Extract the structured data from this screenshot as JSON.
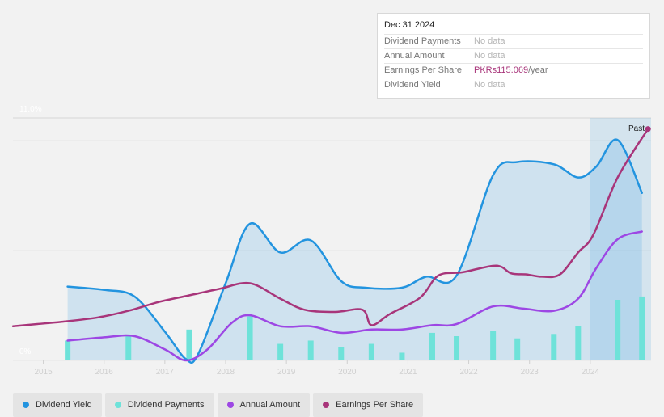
{
  "tooltip": {
    "date": "Dec 31 2024",
    "rows": [
      {
        "label": "Dividend Payments",
        "value": "No data"
      },
      {
        "label": "Annual Amount",
        "value": "No data"
      },
      {
        "label": "Earnings Per Share",
        "value": "PKRs115.069",
        "unit": "/year"
      },
      {
        "label": "Dividend Yield",
        "value": "No data"
      }
    ]
  },
  "colors": {
    "dividend_yield": "#2394df",
    "dividend_payments": "#6ee2d9",
    "annual_amount": "#9d47e4",
    "earnings_per_share": "#a8357a"
  },
  "legend": [
    {
      "label": "Dividend Yield",
      "color": "#2394df"
    },
    {
      "label": "Dividend Payments",
      "color": "#6ee2d9"
    },
    {
      "label": "Annual Amount",
      "color": "#9d47e4"
    },
    {
      "label": "Earnings Per Share",
      "color": "#a8357a"
    }
  ],
  "chart_data": {
    "type": "line",
    "past_label": "Past",
    "y_tick_labels": [
      "11.0%",
      "0%"
    ],
    "ylim": [
      0,
      11
    ],
    "xlim": [
      2014.5,
      2025.0
    ],
    "x_tick_labels": [
      "2015",
      "2016",
      "2017",
      "2018",
      "2019",
      "2020",
      "2021",
      "2022",
      "2023",
      "2024"
    ],
    "x_ticks": [
      2015,
      2016,
      2017,
      2018,
      2019,
      2020,
      2021,
      2022,
      2023,
      2024
    ],
    "forecast_start": 2024.0,
    "series": [
      {
        "name": "Dividend Yield",
        "unit": "%",
        "points": [
          [
            2015.4,
            3.35
          ],
          [
            2016.0,
            3.2
          ],
          [
            2016.5,
            2.9
          ],
          [
            2017.0,
            1.3
          ],
          [
            2017.35,
            0.05
          ],
          [
            2017.55,
            0.3
          ],
          [
            2018.0,
            3.5
          ],
          [
            2018.4,
            6.2
          ],
          [
            2018.9,
            4.9
          ],
          [
            2019.4,
            5.45
          ],
          [
            2019.9,
            3.6
          ],
          [
            2020.3,
            3.3
          ],
          [
            2020.9,
            3.3
          ],
          [
            2021.3,
            3.8
          ],
          [
            2021.8,
            3.85
          ],
          [
            2022.4,
            8.4
          ],
          [
            2022.8,
            9.0
          ],
          [
            2023.4,
            8.9
          ],
          [
            2023.8,
            8.3
          ],
          [
            2024.1,
            8.8
          ],
          [
            2024.45,
            10.0
          ],
          [
            2024.85,
            7.6
          ]
        ]
      },
      {
        "name": "Annual Amount",
        "unit": "PKRs",
        "points": [
          [
            2015.4,
            0.9
          ],
          [
            2016.0,
            1.05
          ],
          [
            2016.5,
            1.1
          ],
          [
            2017.0,
            0.5
          ],
          [
            2017.35,
            0.0
          ],
          [
            2017.7,
            0.5
          ],
          [
            2018.1,
            1.7
          ],
          [
            2018.4,
            2.05
          ],
          [
            2018.9,
            1.55
          ],
          [
            2019.4,
            1.55
          ],
          [
            2019.9,
            1.25
          ],
          [
            2020.4,
            1.4
          ],
          [
            2020.9,
            1.4
          ],
          [
            2021.4,
            1.6
          ],
          [
            2021.8,
            1.65
          ],
          [
            2022.4,
            2.45
          ],
          [
            2022.9,
            2.35
          ],
          [
            2023.4,
            2.25
          ],
          [
            2023.8,
            2.8
          ],
          [
            2024.1,
            4.2
          ],
          [
            2024.45,
            5.5
          ],
          [
            2024.85,
            5.85
          ]
        ]
      },
      {
        "name": "Earnings Per Share",
        "unit": "PKRs",
        "points": [
          [
            2014.5,
            1.55
          ],
          [
            2014.9,
            1.65
          ],
          [
            2015.3,
            1.75
          ],
          [
            2015.9,
            1.95
          ],
          [
            2016.4,
            2.25
          ],
          [
            2016.9,
            2.65
          ],
          [
            2017.4,
            2.95
          ],
          [
            2017.9,
            3.25
          ],
          [
            2018.4,
            3.5
          ],
          [
            2018.9,
            2.8
          ],
          [
            2019.3,
            2.3
          ],
          [
            2019.8,
            2.2
          ],
          [
            2020.25,
            2.3
          ],
          [
            2020.4,
            1.6
          ],
          [
            2020.7,
            2.1
          ],
          [
            2021.2,
            2.85
          ],
          [
            2021.5,
            3.85
          ],
          [
            2021.9,
            4.0
          ],
          [
            2022.45,
            4.3
          ],
          [
            2022.7,
            3.95
          ],
          [
            2022.95,
            3.9
          ],
          [
            2023.2,
            3.8
          ],
          [
            2023.5,
            3.9
          ],
          [
            2023.8,
            4.9
          ],
          [
            2024.05,
            5.7
          ],
          [
            2024.45,
            8.3
          ],
          [
            2024.95,
            10.5
          ]
        ]
      }
    ],
    "bars": {
      "name": "Dividend Payments",
      "unit": "PKRs",
      "points": [
        [
          2015.4,
          0.9
        ],
        [
          2016.4,
          1.1
        ],
        [
          2017.4,
          1.4
        ],
        [
          2018.4,
          2.0
        ],
        [
          2018.9,
          0.75
        ],
        [
          2019.4,
          0.9
        ],
        [
          2019.9,
          0.6
        ],
        [
          2020.4,
          0.75
        ],
        [
          2020.9,
          0.35
        ],
        [
          2021.4,
          1.25
        ],
        [
          2021.8,
          1.1
        ],
        [
          2022.4,
          1.35
        ],
        [
          2022.8,
          1.0
        ],
        [
          2023.4,
          1.2
        ],
        [
          2023.8,
          1.55
        ],
        [
          2024.45,
          2.75
        ],
        [
          2024.85,
          2.9
        ]
      ]
    }
  }
}
